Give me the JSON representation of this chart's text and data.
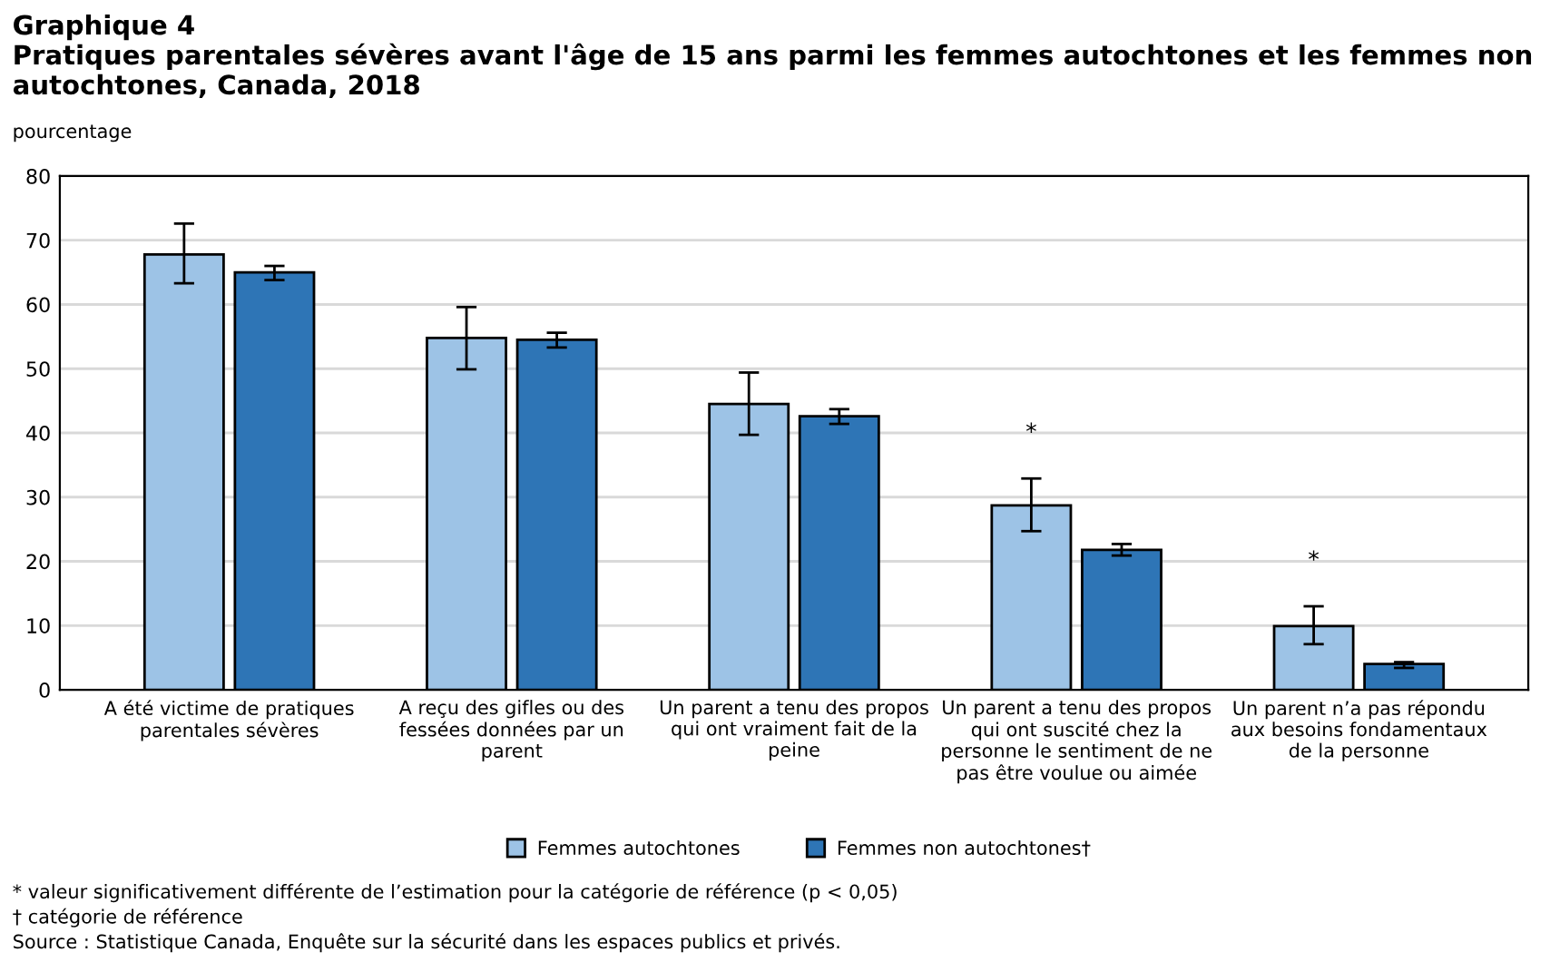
{
  "chart_data": {
    "type": "bar",
    "title": "Graphique 4",
    "subtitle": "Pratiques parentales sévères avant l'âge de 15 ans parmi les femmes autochtones et les femmes non autochtones, Canada, 2018",
    "ylabel": "pourcentage",
    "categories": [
      "A été victime de pratiques\nparentales sévères",
      "A reçu des gifles ou des\nfessées données par un\nparent",
      "Un parent a tenu des propos\nqui ont vraiment fait de la\npeine",
      "Un parent a tenu des propos\nqui ont suscité chez la\npersonne le sentiment de ne\npas être voulue ou aimée",
      "Un parent n’a pas répondu\naux besoins fondamentaux\nde la personne"
    ],
    "series": [
      {
        "name": "Femmes autochtones",
        "color": "#9dc3e6",
        "values": [
          67.8,
          54.8,
          44.5,
          28.7,
          9.9
        ],
        "value_labels": [
          null,
          null,
          null,
          "*",
          "*"
        ],
        "errors": [
          [
            63.3,
            72.6
          ],
          [
            49.9,
            59.6
          ],
          [
            39.7,
            49.4
          ],
          [
            24.7,
            32.9
          ],
          [
            7.1,
            13.0
          ]
        ]
      },
      {
        "name": "Femmes non autochtones†",
        "color": "#2e75b6",
        "values": [
          65.0,
          54.5,
          42.6,
          21.8,
          4.0
        ],
        "errors": [
          [
            63.8,
            66.0
          ],
          [
            53.3,
            55.6
          ],
          [
            41.4,
            43.7
          ],
          [
            20.9,
            22.7
          ],
          [
            3.4,
            4.3
          ]
        ]
      }
    ],
    "ylim": [
      0,
      80
    ],
    "yticks": [
      0,
      10,
      20,
      30,
      40,
      50,
      60,
      70,
      80
    ],
    "grid": "y",
    "legend": "bottom",
    "annotations": [
      "* valeur significativement différente de l’estimation pour la catégorie de référence (p < 0,05)",
      "† catégorie de référence",
      "Source : Statistique Canada, Enquête sur la sécurité dans les espaces publics et privés."
    ]
  }
}
